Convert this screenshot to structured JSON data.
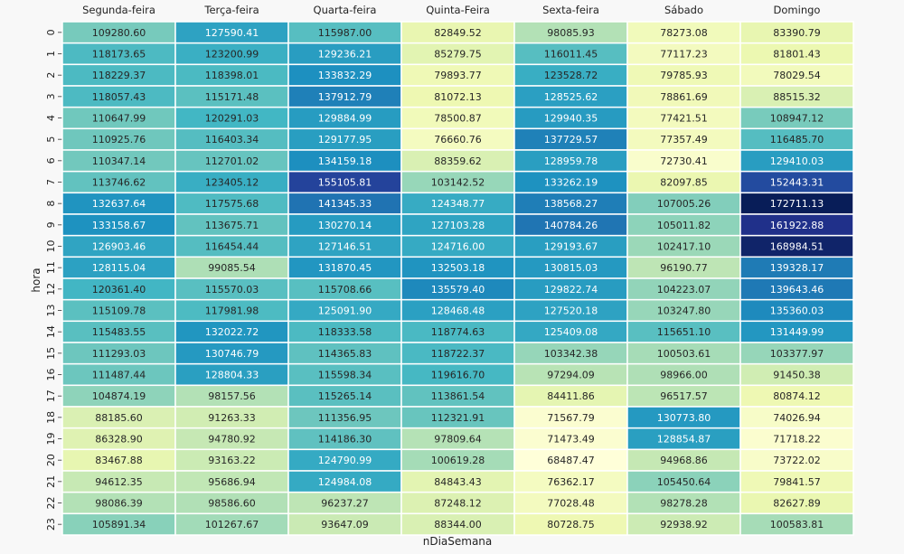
{
  "chart_data": {
    "type": "heatmap",
    "title": "",
    "xlabel": "nDiaSemana",
    "ylabel": "hora",
    "x_categories": [
      "Segunda-feira",
      "Terça-feira",
      "Quarta-feira",
      "Quinta-Feira",
      "Sexta-feira",
      "Sábado",
      "Domingo"
    ],
    "y_categories": [
      "0",
      "1",
      "2",
      "3",
      "4",
      "5",
      "6",
      "7",
      "8",
      "9",
      "10",
      "11",
      "12",
      "13",
      "14",
      "15",
      "16",
      "17",
      "18",
      "19",
      "20",
      "21",
      "22",
      "23"
    ],
    "value_range": [
      68487.47,
      172711.13
    ],
    "colormap": [
      "#ffffd9",
      "#edf8b1",
      "#c7e9b4",
      "#7fcdbb",
      "#41b6c4",
      "#1d91c0",
      "#225ea8",
      "#253494",
      "#081d58"
    ],
    "values": [
      [
        "109280.60",
        "127590.41",
        "115987.00",
        "82849.52",
        "98085.93",
        "78273.08",
        "83390.79"
      ],
      [
        "118173.65",
        "123200.99",
        "129236.21",
        "85279.75",
        "116011.45",
        "77117.23",
        "81801.43"
      ],
      [
        "118229.37",
        "118398.01",
        "133832.29",
        "79893.77",
        "123528.72",
        "79785.93",
        "78029.54"
      ],
      [
        "118057.43",
        "115171.48",
        "137912.79",
        "81072.13",
        "128525.62",
        "78861.69",
        "88515.32"
      ],
      [
        "110647.99",
        "120291.03",
        "129884.99",
        "78500.87",
        "129940.35",
        "77421.51",
        "108947.12"
      ],
      [
        "110925.76",
        "116403.34",
        "129177.95",
        "76660.76",
        "137729.57",
        "77357.49",
        "116485.70"
      ],
      [
        "110347.14",
        "112701.02",
        "134159.18",
        "88359.62",
        "128959.78",
        "72730.41",
        "129410.03"
      ],
      [
        "113746.62",
        "123405.12",
        "155105.81",
        "103142.52",
        "133262.19",
        "82097.85",
        "152443.31"
      ],
      [
        "132637.64",
        "117575.68",
        "141345.33",
        "124348.77",
        "138568.27",
        "107005.26",
        "172711.13"
      ],
      [
        "133158.67",
        "113675.71",
        "130270.14",
        "127103.28",
        "140784.26",
        "105011.82",
        "161922.88"
      ],
      [
        "126903.46",
        "116454.44",
        "127146.51",
        "124716.00",
        "129193.67",
        "102417.10",
        "168984.51"
      ],
      [
        "128115.04",
        "99085.54",
        "131870.45",
        "132503.18",
        "130815.03",
        "96190.77",
        "139328.17"
      ],
      [
        "120361.40",
        "115570.03",
        "115708.66",
        "135579.40",
        "129822.74",
        "104223.07",
        "139643.46"
      ],
      [
        "115109.78",
        "117981.98",
        "125091.90",
        "128468.48",
        "127520.18",
        "103247.80",
        "135360.03"
      ],
      [
        "115483.55",
        "132022.72",
        "118333.58",
        "118774.63",
        "125409.08",
        "115651.10",
        "131449.99"
      ],
      [
        "111293.03",
        "130746.79",
        "114365.83",
        "118722.37",
        "103342.38",
        "100503.61",
        "103377.97"
      ],
      [
        "111487.44",
        "128804.33",
        "115598.34",
        "119616.70",
        "97294.09",
        "98966.00",
        "91450.38"
      ],
      [
        "104874.19",
        "98157.56",
        "115265.14",
        "113861.54",
        "84411.86",
        "96517.57",
        "80874.12"
      ],
      [
        "88185.60",
        "91263.33",
        "111356.95",
        "112321.91",
        "71567.79",
        "130773.80",
        "74026.94"
      ],
      [
        "86328.90",
        "94780.92",
        "114186.30",
        "97809.64",
        "71473.49",
        "128854.87",
        "71718.22"
      ],
      [
        "83467.88",
        "93163.22",
        "124790.99",
        "100619.28",
        "68487.47",
        "94968.86",
        "73722.02"
      ],
      [
        "94612.35",
        "95686.94",
        "124984.08",
        "84843.43",
        "76362.17",
        "105450.64",
        "79841.57"
      ],
      [
        "98086.39",
        "98586.60",
        "96237.27",
        "87248.12",
        "77028.48",
        "98278.28",
        "82627.89"
      ],
      [
        "105891.34",
        "101267.67",
        "93647.09",
        "88344.00",
        "80728.75",
        "92938.92",
        "100583.81"
      ]
    ]
  }
}
